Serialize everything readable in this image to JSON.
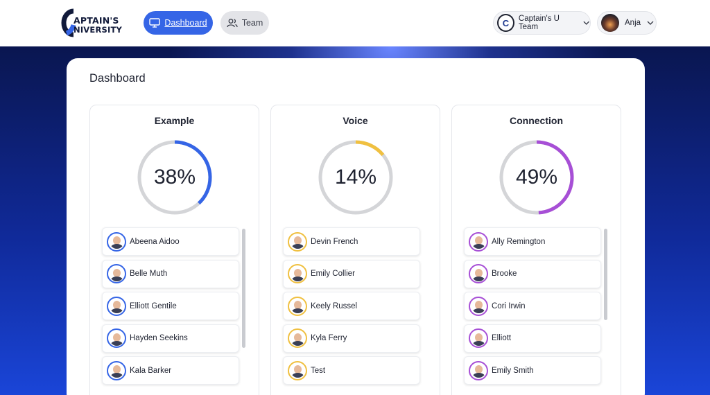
{
  "header": {
    "logo": {
      "line1": "APTAIN'S",
      "line2": "NIVERSITY"
    },
    "nav": [
      {
        "label": "Dashboard",
        "icon": "monitor-icon",
        "active": true
      },
      {
        "label": "Team",
        "icon": "users-icon",
        "active": false
      }
    ],
    "team_selector": {
      "label": "Captain's U Team",
      "badge": "C"
    },
    "user_menu": {
      "label": "Anja"
    }
  },
  "dashboard": {
    "title": "Dashboard",
    "panels": [
      {
        "title": "Example",
        "percent_label": "38%",
        "percent": 38,
        "color": "#3565e6",
        "members": [
          "Abeena Aidoo",
          "Belle Muth",
          "Elliott Gentile",
          "Hayden Seekins",
          "Kala Barker"
        ]
      },
      {
        "title": "Voice",
        "percent_label": "14%",
        "percent": 14,
        "color": "#f0c040",
        "members": [
          "Devin French",
          "Emily Collier",
          "Keely Russel",
          "Kyla Ferry",
          "Test"
        ]
      },
      {
        "title": "Connection",
        "percent_label": "49%",
        "percent": 49,
        "color": "#a74fd6",
        "members": [
          "Ally Remington",
          "Brooke",
          "Cori Irwin",
          "Elliott",
          "Emily Smith"
        ]
      }
    ]
  }
}
